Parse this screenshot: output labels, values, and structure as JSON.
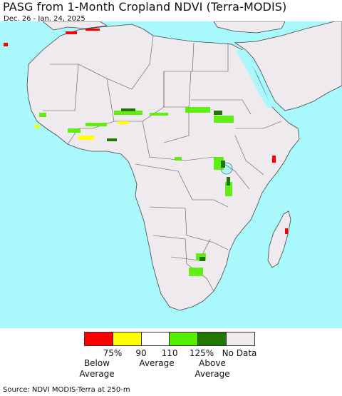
{
  "header": {
    "title": "PASG from 1-Month Cropland NDVI (Terra-MODIS)",
    "date_range": "Dec. 26 - Jan. 24, 2025"
  },
  "legend": {
    "swatches": [
      {
        "color": "#ff0000",
        "name": "below-75"
      },
      {
        "color": "#ffff00",
        "name": "75-90"
      },
      {
        "color": "#ffffff",
        "name": "90-110"
      },
      {
        "color": "#55ee00",
        "name": "110-125"
      },
      {
        "color": "#227700",
        "name": "above-125"
      },
      {
        "color": "#eeeaee",
        "name": "no-data"
      }
    ],
    "ticks": [
      "75%",
      "90",
      "110",
      "125%",
      "No Data"
    ],
    "below_label_1": "Below",
    "below_label_2": "Average",
    "average_label": "Average",
    "above_label_1": "Above",
    "above_label_2": "Average"
  },
  "map": {
    "ocean_color": "#a8f8fc",
    "land_color": "#eeeaee",
    "border_color": "#555555"
  },
  "footer": {
    "source": "Source: NDVI MODIS-Terra at 250-m"
  }
}
